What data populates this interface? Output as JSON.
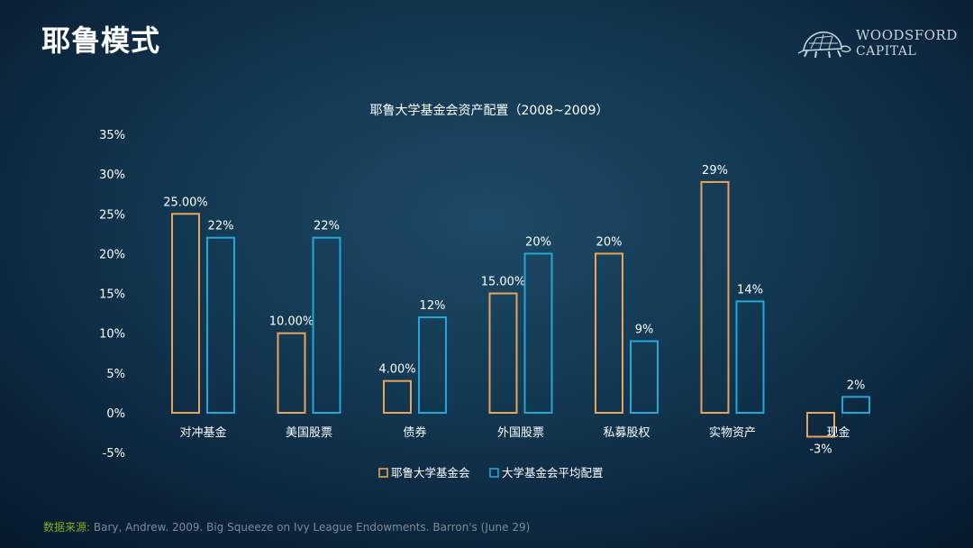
{
  "slide": {
    "title": "耶鲁模式",
    "logo_line1": "WOODSFORD",
    "logo_line2": "CAPITAL",
    "source_label": "数据来源:",
    "source_text": "Bary, Andrew. 2009. Big Squeeze on Ivy League Endowments. Barron's (June 29)"
  },
  "chart_data": {
    "type": "bar",
    "title": "耶鲁大学基金会资产配置（2008~2009）",
    "xlabel": "",
    "ylabel": "",
    "ylim": [
      -5,
      35
    ],
    "yticks": [
      "-5%",
      "0%",
      "5%",
      "10%",
      "15%",
      "20%",
      "25%",
      "30%",
      "35%"
    ],
    "categories": [
      "对冲基金",
      "美国股票",
      "债券",
      "外国股票",
      "私募股权",
      "实物资产",
      "现金"
    ],
    "series": [
      {
        "name": "耶鲁大学基金会",
        "color": "#e8a45a",
        "values": [
          25,
          10,
          4,
          15,
          20,
          29,
          -3
        ],
        "labels": [
          "25.00%",
          "10.00%",
          "4.00%",
          "15.00%",
          "20%",
          "29%",
          "-3%"
        ]
      },
      {
        "name": "大学基金会平均配置",
        "color": "#22a7d6",
        "values": [
          22,
          22,
          12,
          20,
          9,
          14,
          2
        ],
        "labels": [
          "22%",
          "22%",
          "12%",
          "20%",
          "9%",
          "14%",
          "2%"
        ]
      }
    ],
    "grid": false,
    "legend": "bottom"
  }
}
